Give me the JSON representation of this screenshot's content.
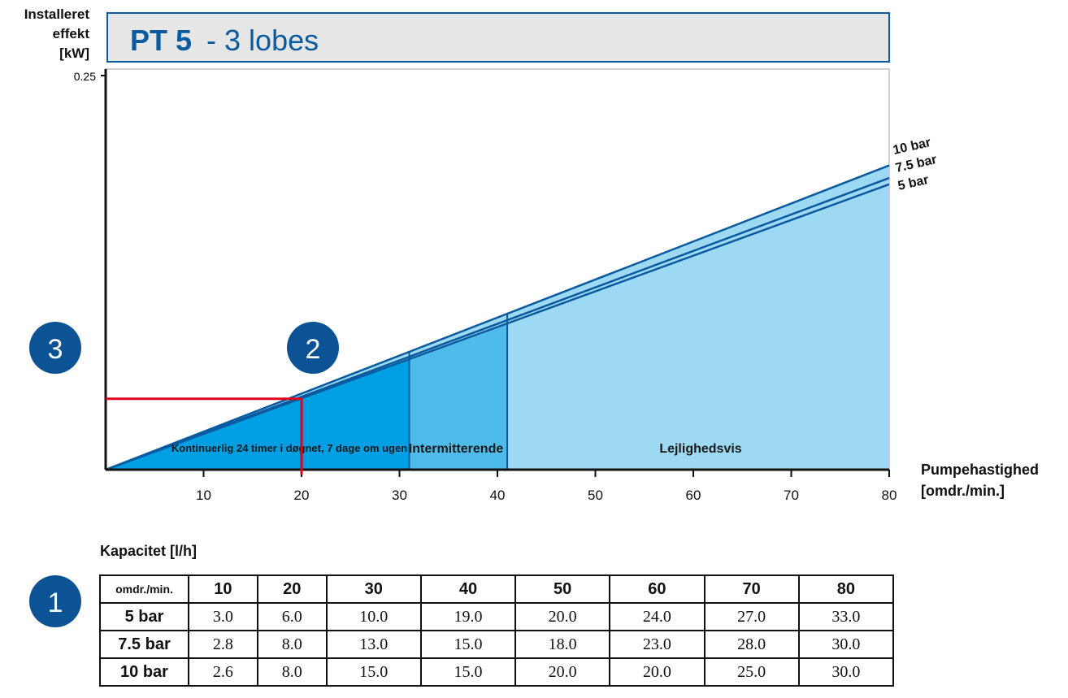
{
  "header": {
    "title_bold": "PT 5",
    "title_rest": "- 3 lobes"
  },
  "axes": {
    "ylabel": [
      "Installeret",
      "effekt",
      "[kW]"
    ],
    "xlabel": [
      "Pumpehastighed",
      "[omdr./min.]"
    ],
    "y_tick": "0.25",
    "x_ticks": [
      "10",
      "20",
      "30",
      "40",
      "50",
      "60",
      "70",
      "80"
    ]
  },
  "zones": {
    "continuous": "Kontinuerlig 24 timer i døgnet, 7 dage om ugen",
    "intermittent": "Intermitterende",
    "occasional": "Lejlighedsvis"
  },
  "markers": [
    "3",
    "2",
    "1"
  ],
  "colors": {
    "line": "#0a5aa0",
    "zone_continuous": "#009fe3",
    "zone_intermittent": "#4fbbea",
    "zone_occasional": "#9dd9f3",
    "reference": "#e2001a",
    "marker": "#0b5394",
    "title_bg": "#e6e6e6"
  },
  "chart_data": {
    "type": "line",
    "title": "PT 5 - 3 lobes",
    "xlabel": "Pumpehastighed [omdr./min.]",
    "ylabel": "Installeret effekt [kW]",
    "xlim": [
      0,
      80
    ],
    "ylim": [
      0,
      0.25
    ],
    "x": [
      0,
      80
    ],
    "series": [
      {
        "name": "10 bar",
        "values": [
          0,
          0.193
        ]
      },
      {
        "name": "7.5 bar",
        "values": [
          0,
          0.185
        ]
      },
      {
        "name": "5 bar",
        "values": [
          0,
          0.181
        ]
      }
    ],
    "zones": [
      {
        "name": "Kontinuerlig 24 timer i døgnet, 7 dage om ugen",
        "x_range": [
          0,
          31
        ]
      },
      {
        "name": "Intermitterende",
        "x_range": [
          31,
          41
        ]
      },
      {
        "name": "Lejlighedsvis",
        "x_range": [
          41,
          80
        ]
      }
    ],
    "reference": {
      "x": 20,
      "y": 0.045
    }
  },
  "capacity_table": {
    "title": "Kapacitet [l/h]",
    "corner": "omdr./min.",
    "columns": [
      "10",
      "20",
      "30",
      "40",
      "50",
      "60",
      "70",
      "80"
    ],
    "rows": [
      {
        "label": "5 bar",
        "values": [
          "3.0",
          "6.0",
          "10.0",
          "19.0",
          "20.0",
          "24.0",
          "27.0",
          "33.0"
        ]
      },
      {
        "label": "7.5 bar",
        "values": [
          "2.8",
          "8.0",
          "13.0",
          "15.0",
          "18.0",
          "23.0",
          "28.0",
          "30.0"
        ]
      },
      {
        "label": "10 bar",
        "values": [
          "2.6",
          "8.0",
          "15.0",
          "15.0",
          "20.0",
          "20.0",
          "25.0",
          "30.0"
        ]
      }
    ]
  }
}
